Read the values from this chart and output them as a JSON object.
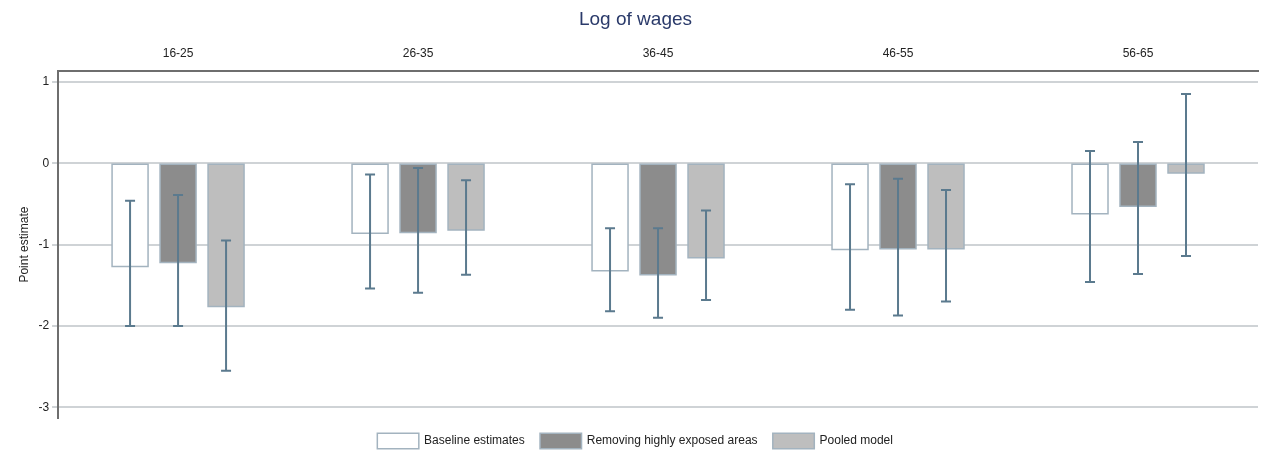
{
  "chart_data": {
    "type": "bar",
    "title": "Log of wages",
    "ylabel": "Point estimate",
    "categories": [
      "16-25",
      "26-35",
      "36-45",
      "46-55",
      "56-65"
    ],
    "series": [
      {
        "name": "Baseline estimates",
        "color": "#ffffff",
        "values": [
          -1.27,
          -0.86,
          -1.32,
          -1.06,
          -0.62
        ],
        "errors": [
          [
            -2.0,
            -0.46
          ],
          [
            -1.54,
            -0.14
          ],
          [
            -1.82,
            -0.8
          ],
          [
            -1.8,
            -0.26
          ],
          [
            -1.46,
            0.15
          ]
        ]
      },
      {
        "name": "Removing highly exposed areas",
        "color": "#8c8c8c",
        "values": [
          -1.22,
          -0.85,
          -1.37,
          -1.05,
          -0.53
        ],
        "errors": [
          [
            -2.0,
            -0.39
          ],
          [
            -1.59,
            -0.06
          ],
          [
            -1.9,
            -0.8
          ],
          [
            -1.87,
            -0.19
          ],
          [
            -1.36,
            0.26
          ]
        ]
      },
      {
        "name": "Pooled model",
        "color": "#bebebe",
        "values": [
          -1.76,
          -0.82,
          -1.16,
          -1.05,
          -0.12
        ],
        "errors": [
          [
            -2.55,
            -0.95
          ],
          [
            -1.37,
            -0.21
          ],
          [
            -1.68,
            -0.58
          ],
          [
            -1.7,
            -0.33
          ],
          [
            -1.14,
            0.85
          ]
        ]
      }
    ],
    "ylim": [
      -3.13,
      1.13
    ],
    "yticks": [
      1,
      0,
      -1,
      -2,
      -3
    ],
    "grid": "y",
    "legend": "bottom"
  }
}
